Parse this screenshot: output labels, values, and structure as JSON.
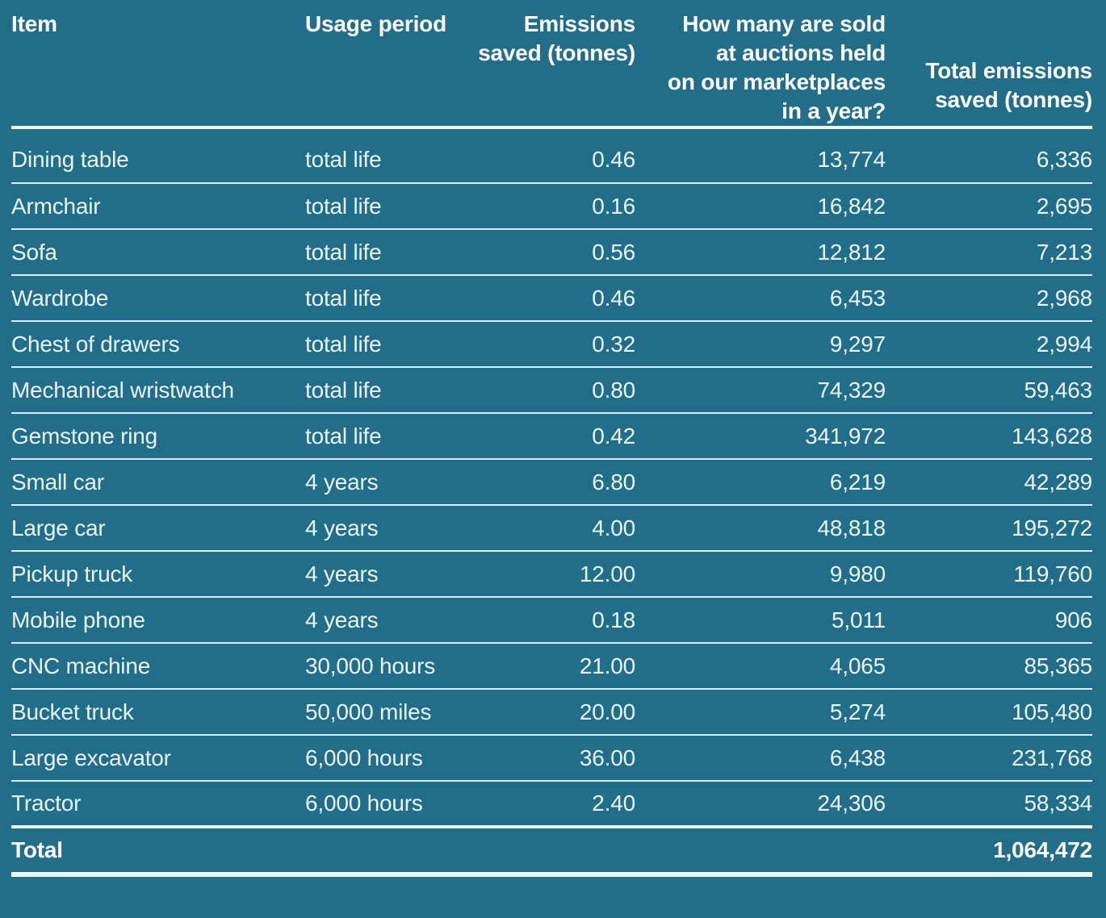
{
  "colors": {
    "bg": "#226E8A",
    "header-text": "#FFFFFF",
    "body-text": "#EAF4F6",
    "divider": "#D8ECF2",
    "divider-strong": "#EAF7FB"
  },
  "table": {
    "columns": [
      {
        "label": "Item",
        "align": "left"
      },
      {
        "label": "Usage period",
        "align": "left"
      },
      {
        "label": "Emissions\nsaved (tonnes)",
        "align": "right"
      },
      {
        "label": "How many are sold\nat auctions held\non our marketplaces\nin a year?",
        "align": "right"
      },
      {
        "label": "Total emissions\nsaved (tonnes)",
        "align": "right"
      }
    ],
    "rows": [
      {
        "item": "Dining table",
        "usage_period": "total life",
        "emissions_saved": "0.46",
        "sold_per_year": "13,774",
        "total_saved": "6,336"
      },
      {
        "item": "Armchair",
        "usage_period": "total life",
        "emissions_saved": "0.16",
        "sold_per_year": "16,842",
        "total_saved": "2,695"
      },
      {
        "item": "Sofa",
        "usage_period": "total life",
        "emissions_saved": "0.56",
        "sold_per_year": "12,812",
        "total_saved": "7,213"
      },
      {
        "item": "Wardrobe",
        "usage_period": "total life",
        "emissions_saved": "0.46",
        "sold_per_year": "6,453",
        "total_saved": "2,968"
      },
      {
        "item": "Chest of drawers",
        "usage_period": "total life",
        "emissions_saved": "0.32",
        "sold_per_year": "9,297",
        "total_saved": "2,994"
      },
      {
        "item": "Mechanical wristwatch",
        "usage_period": "total life",
        "emissions_saved": "0.80",
        "sold_per_year": "74,329",
        "total_saved": "59,463"
      },
      {
        "item": "Gemstone ring",
        "usage_period": "total life",
        "emissions_saved": "0.42",
        "sold_per_year": "341,972",
        "total_saved": "143,628"
      },
      {
        "item": "Small car",
        "usage_period": "4 years",
        "emissions_saved": "6.80",
        "sold_per_year": "6,219",
        "total_saved": "42,289"
      },
      {
        "item": "Large car",
        "usage_period": "4 years",
        "emissions_saved": "4.00",
        "sold_per_year": "48,818",
        "total_saved": "195,272"
      },
      {
        "item": "Pickup truck",
        "usage_period": "4 years",
        "emissions_saved": "12.00",
        "sold_per_year": "9,980",
        "total_saved": "119,760"
      },
      {
        "item": "Mobile phone",
        "usage_period": "4 years",
        "emissions_saved": "0.18",
        "sold_per_year": "5,011",
        "total_saved": "906"
      },
      {
        "item": "CNC machine",
        "usage_period": "30,000 hours",
        "emissions_saved": "21.00",
        "sold_per_year": "4,065",
        "total_saved": "85,365"
      },
      {
        "item": "Bucket truck",
        "usage_period": "50,000 miles",
        "emissions_saved": "20.00",
        "sold_per_year": "5,274",
        "total_saved": "105,480"
      },
      {
        "item": "Large excavator",
        "usage_period": "6,000 hours",
        "emissions_saved": "36.00",
        "sold_per_year": "6,438",
        "total_saved": "231,768"
      },
      {
        "item": "Tractor",
        "usage_period": "6,000 hours",
        "emissions_saved": "2.40",
        "sold_per_year": "24,306",
        "total_saved": "58,334"
      }
    ],
    "total_label": "Total",
    "total_value": "1,064,472"
  }
}
